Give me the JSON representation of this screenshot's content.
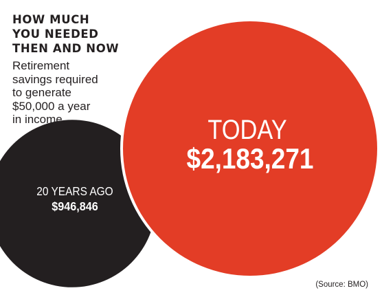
{
  "header": {
    "title_lines": [
      "HOW MUCH",
      "YOU NEEDED",
      "THEN AND NOW"
    ],
    "subtitle_lines": [
      "Retirement",
      "savings required",
      "to generate",
      "$50,000 a year",
      "in income"
    ]
  },
  "source": "(Source: BMO)",
  "colors": {
    "today": "#e33d26",
    "past": "#231f20",
    "label_on_circle": "#ffffff",
    "text": "#231f20"
  },
  "chart_data": {
    "type": "bubble",
    "encoding": "circle area proportional to value",
    "series": [
      {
        "label": "20 YEARS AGO",
        "value_label": "$946,846",
        "value": 946846
      },
      {
        "label": "TODAY",
        "value_label": "$2,183,271",
        "value": 2183271
      }
    ]
  }
}
